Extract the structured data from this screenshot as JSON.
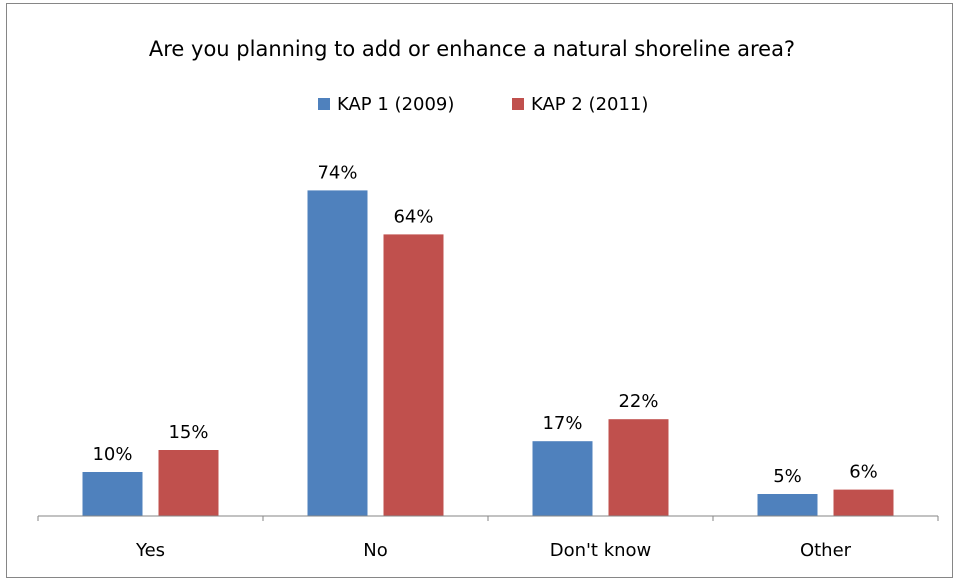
{
  "chart_data": {
    "type": "bar",
    "title": "Are you planning to add or enhance a natural shoreline area?",
    "categories": [
      "Yes",
      "No",
      "Don't know",
      "Other"
    ],
    "series": [
      {
        "name": "KAP 1 (2009)",
        "color": "#4F81BD",
        "values": [
          10,
          74,
          17,
          5
        ],
        "labels": [
          "10%",
          "74%",
          "17%",
          "5%"
        ]
      },
      {
        "name": "KAP 2 (2011)",
        "color": "#C0504D",
        "values": [
          15,
          64,
          22,
          6
        ],
        "labels": [
          "15%",
          "64%",
          "22%",
          "6%"
        ]
      }
    ],
    "ylim": [
      0,
      100
    ],
    "unit": "%",
    "grid": false,
    "legend": "top"
  }
}
